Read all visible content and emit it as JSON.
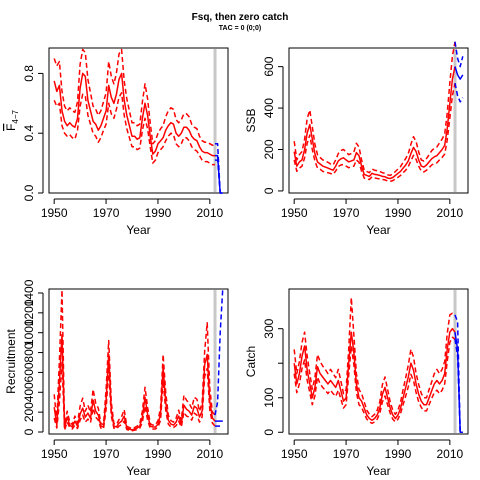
{
  "figure": {
    "title": "Fsq, then zero catch",
    "subtitle": "TAC = 0 (0;0)"
  },
  "colors": {
    "hist": "#ff0000",
    "proj": "#0000ff",
    "marker": "#c8c8c8",
    "axis": "#000000"
  },
  "chart_data": [
    {
      "id": "fbar",
      "type": "line",
      "xlabel": "Year",
      "ylabel": "F̅ 4−7",
      "ylabel_main": "F",
      "ylabel_sub": "4−7",
      "xlim": [
        1948,
        2017
      ],
      "ylim": [
        0,
        0.97
      ],
      "xticks": [
        1950,
        1970,
        1990,
        2010
      ],
      "yticks": [
        0.0,
        0.4,
        0.8
      ],
      "ytick_labels": [
        "0.0",
        "0.4",
        "0.8"
      ],
      "marker_year": 2012,
      "hist_years": [
        1950,
        1951,
        1952,
        1953,
        1954,
        1955,
        1956,
        1957,
        1958,
        1959,
        1960,
        1961,
        1962,
        1963,
        1964,
        1965,
        1966,
        1967,
        1968,
        1969,
        1970,
        1971,
        1972,
        1973,
        1974,
        1975,
        1976,
        1977,
        1978,
        1979,
        1980,
        1981,
        1982,
        1983,
        1984,
        1985,
        1986,
        1987,
        1988,
        1989,
        1990,
        1991,
        1992,
        1993,
        1994,
        1995,
        1996,
        1997,
        1998,
        1999,
        2000,
        2001,
        2002,
        2003,
        2004,
        2005,
        2006,
        2007,
        2008,
        2009,
        2010,
        2011,
        2012
      ],
      "median": [
        0.75,
        0.68,
        0.72,
        0.55,
        0.48,
        0.45,
        0.47,
        0.45,
        0.44,
        0.5,
        0.7,
        0.8,
        0.78,
        0.62,
        0.55,
        0.48,
        0.46,
        0.42,
        0.45,
        0.5,
        0.55,
        0.72,
        0.64,
        0.6,
        0.66,
        0.76,
        0.8,
        0.62,
        0.52,
        0.45,
        0.38,
        0.38,
        0.36,
        0.37,
        0.5,
        0.6,
        0.52,
        0.38,
        0.26,
        0.28,
        0.33,
        0.35,
        0.37,
        0.42,
        0.45,
        0.47,
        0.46,
        0.4,
        0.38,
        0.4,
        0.44,
        0.44,
        0.42,
        0.38,
        0.36,
        0.35,
        0.31,
        0.28,
        0.27,
        0.27,
        0.26,
        0.25,
        0.25
      ],
      "lower": [
        0.62,
        0.58,
        0.6,
        0.45,
        0.4,
        0.38,
        0.39,
        0.37,
        0.36,
        0.42,
        0.58,
        0.66,
        0.65,
        0.52,
        0.46,
        0.4,
        0.38,
        0.34,
        0.37,
        0.42,
        0.46,
        0.6,
        0.53,
        0.5,
        0.56,
        0.64,
        0.67,
        0.52,
        0.43,
        0.37,
        0.31,
        0.31,
        0.29,
        0.3,
        0.42,
        0.5,
        0.43,
        0.31,
        0.2,
        0.22,
        0.27,
        0.29,
        0.31,
        0.35,
        0.38,
        0.4,
        0.39,
        0.33,
        0.31,
        0.33,
        0.37,
        0.37,
        0.35,
        0.31,
        0.29,
        0.28,
        0.25,
        0.22,
        0.21,
        0.21,
        0.2,
        0.19,
        0.19
      ],
      "upper": [
        0.9,
        0.85,
        0.88,
        0.68,
        0.58,
        0.55,
        0.57,
        0.55,
        0.54,
        0.61,
        0.86,
        0.96,
        0.94,
        0.76,
        0.67,
        0.58,
        0.56,
        0.52,
        0.55,
        0.61,
        0.67,
        0.88,
        0.78,
        0.73,
        0.8,
        0.93,
        0.96,
        0.75,
        0.63,
        0.55,
        0.47,
        0.47,
        0.45,
        0.46,
        0.61,
        0.73,
        0.63,
        0.47,
        0.33,
        0.35,
        0.4,
        0.43,
        0.45,
        0.51,
        0.55,
        0.57,
        0.56,
        0.49,
        0.47,
        0.49,
        0.53,
        0.53,
        0.51,
        0.46,
        0.44,
        0.43,
        0.38,
        0.35,
        0.34,
        0.34,
        0.33,
        0.32,
        0.32
      ],
      "proj_years": [
        2012,
        2013,
        2014,
        2015
      ],
      "proj_median": [
        0.25,
        0.25,
        0.0,
        0.0
      ],
      "proj_lower": [
        0.22,
        0.22,
        0.0,
        0.0
      ],
      "proj_upper": [
        0.33,
        0.33,
        0.0,
        0.0
      ]
    },
    {
      "id": "ssb",
      "type": "line",
      "xlabel": "Year",
      "ylabel": "SSB",
      "xlim": [
        1948,
        2017
      ],
      "ylim": [
        -10,
        690
      ],
      "xticks": [
        1950,
        1970,
        1990,
        2010
      ],
      "yticks": [
        0,
        200,
        400,
        600
      ],
      "ytick_labels": [
        "0",
        "200",
        "400",
        "600"
      ],
      "marker_year": 2012,
      "hist_years": [
        1950,
        1951,
        1952,
        1953,
        1954,
        1955,
        1956,
        1957,
        1958,
        1959,
        1960,
        1961,
        1962,
        1963,
        1964,
        1965,
        1966,
        1967,
        1968,
        1969,
        1970,
        1971,
        1972,
        1973,
        1974,
        1975,
        1976,
        1977,
        1978,
        1979,
        1980,
        1981,
        1982,
        1983,
        1984,
        1985,
        1986,
        1987,
        1988,
        1989,
        1990,
        1991,
        1992,
        1993,
        1994,
        1995,
        1996,
        1997,
        1998,
        1999,
        2000,
        2001,
        2002,
        2003,
        2004,
        2005,
        2006,
        2007,
        2008,
        2009,
        2010,
        2011,
        2012
      ],
      "median": [
        190,
        120,
        140,
        150,
        200,
        280,
        320,
        250,
        180,
        140,
        130,
        120,
        115,
        110,
        105,
        100,
        120,
        145,
        155,
        160,
        150,
        140,
        145,
        150,
        185,
        170,
        120,
        80,
        75,
        70,
        85,
        80,
        78,
        75,
        70,
        68,
        62,
        60,
        65,
        75,
        85,
        95,
        110,
        125,
        145,
        180,
        210,
        190,
        150,
        120,
        115,
        125,
        140,
        155,
        165,
        170,
        185,
        200,
        220,
        300,
        420,
        540,
        600
      ],
      "lower": [
        150,
        95,
        110,
        120,
        160,
        230,
        270,
        200,
        145,
        110,
        105,
        95,
        90,
        88,
        84,
        80,
        96,
        118,
        125,
        128,
        120,
        112,
        116,
        120,
        150,
        138,
        95,
        62,
        58,
        55,
        68,
        63,
        60,
        58,
        55,
        53,
        48,
        46,
        50,
        58,
        66,
        75,
        88,
        100,
        118,
        145,
        172,
        152,
        120,
        95,
        92,
        100,
        112,
        125,
        132,
        136,
        150,
        162,
        178,
        245,
        350,
        460,
        520
      ],
      "upper": [
        240,
        150,
        175,
        190,
        250,
        350,
        390,
        310,
        225,
        175,
        162,
        150,
        145,
        138,
        130,
        125,
        150,
        180,
        195,
        200,
        188,
        175,
        180,
        188,
        230,
        212,
        150,
        100,
        94,
        88,
        106,
        100,
        98,
        94,
        88,
        85,
        78,
        75,
        82,
        94,
        106,
        118,
        138,
        156,
        180,
        225,
        262,
        238,
        188,
        150,
        144,
        156,
        175,
        194,
        206,
        212,
        232,
        250,
        275,
        375,
        520,
        650,
        720
      ],
      "proj_years": [
        2012,
        2013,
        2014,
        2015
      ],
      "proj_median": [
        600,
        560,
        540,
        560
      ],
      "proj_lower": [
        520,
        460,
        430,
        450
      ],
      "proj_upper": [
        720,
        640,
        600,
        650
      ]
    },
    {
      "id": "rec",
      "type": "line",
      "xlabel": "Year",
      "ylabel": "Recruitment",
      "xlim": [
        1948,
        2017
      ],
      "ylim": [
        -20,
        1440
      ],
      "xticks": [
        1950,
        1970,
        1990,
        2010
      ],
      "yticks": [
        0,
        400,
        800,
        1200
      ],
      "ytick_labels": [
        "0",
        "400",
        "800",
        "1200"
      ],
      "ytick_minor": [
        200,
        600,
        1000,
        1400
      ],
      "ytick_minor_labels": [
        "200",
        "600",
        "1000",
        "1400"
      ],
      "marker_year": 2012,
      "hist_years": [
        1950,
        1951,
        1952,
        1953,
        1954,
        1955,
        1956,
        1957,
        1958,
        1959,
        1960,
        1961,
        1962,
        1963,
        1964,
        1965,
        1966,
        1967,
        1968,
        1969,
        1970,
        1971,
        1972,
        1973,
        1974,
        1975,
        1976,
        1977,
        1978,
        1979,
        1980,
        1981,
        1982,
        1983,
        1984,
        1985,
        1986,
        1987,
        1988,
        1989,
        1990,
        1991,
        1992,
        1993,
        1994,
        1995,
        1996,
        1997,
        1998,
        1999,
        2000,
        2001,
        2002,
        2003,
        2004,
        2005,
        2006,
        2007,
        2008,
        2009,
        2010,
        2011,
        2012
      ],
      "median": [
        250,
        70,
        500,
        980,
        40,
        150,
        70,
        50,
        110,
        60,
        180,
        240,
        150,
        190,
        140,
        320,
        210,
        170,
        60,
        50,
        320,
        780,
        220,
        60,
        50,
        90,
        110,
        160,
        40,
        30,
        20,
        30,
        40,
        60,
        150,
        350,
        180,
        60,
        50,
        50,
        80,
        180,
        650,
        300,
        120,
        80,
        70,
        100,
        160,
        80,
        270,
        230,
        210,
        170,
        260,
        240,
        150,
        210,
        680,
        780,
        310,
        140,
        110
      ],
      "lower": [
        140,
        40,
        300,
        700,
        20,
        100,
        45,
        30,
        70,
        35,
        120,
        170,
        100,
        130,
        95,
        240,
        150,
        120,
        38,
        30,
        230,
        620,
        160,
        38,
        30,
        60,
        75,
        110,
        25,
        18,
        12,
        18,
        25,
        38,
        100,
        260,
        120,
        38,
        30,
        30,
        50,
        120,
        520,
        220,
        80,
        50,
        45,
        65,
        110,
        50,
        200,
        160,
        150,
        120,
        190,
        170,
        100,
        150,
        560,
        640,
        220,
        90,
        60
      ],
      "upper": [
        380,
        110,
        720,
        1430,
        70,
        210,
        100,
        75,
        160,
        90,
        260,
        340,
        210,
        270,
        200,
        430,
        290,
        240,
        85,
        75,
        430,
        920,
        300,
        85,
        75,
        125,
        155,
        225,
        60,
        45,
        32,
        45,
        60,
        85,
        210,
        450,
        250,
        85,
        70,
        70,
        115,
        250,
        780,
        400,
        170,
        115,
        100,
        140,
        220,
        115,
        370,
        320,
        290,
        240,
        350,
        330,
        210,
        290,
        820,
        1100,
        440,
        200,
        170
      ],
      "proj_years": [
        2012,
        2013,
        2014,
        2015
      ],
      "proj_median": [
        110,
        110,
        110,
        110
      ],
      "proj_lower": [
        60,
        60,
        60,
        60
      ],
      "proj_upper": [
        170,
        300,
        1000,
        1450
      ]
    },
    {
      "id": "catch",
      "type": "line",
      "xlabel": "Year",
      "ylabel": "Catch",
      "xlim": [
        1948,
        2017
      ],
      "ylim": [
        -5,
        415
      ],
      "xticks": [
        1950,
        1970,
        1990,
        2010
      ],
      "yticks": [
        0,
        100,
        300
      ],
      "ytick_labels": [
        "0",
        "100",
        "300"
      ],
      "ytick_minor": [
        200
      ],
      "marker_year": 2012,
      "hist_years": [
        1950,
        1951,
        1952,
        1953,
        1954,
        1955,
        1956,
        1957,
        1958,
        1959,
        1960,
        1961,
        1962,
        1963,
        1964,
        1965,
        1966,
        1967,
        1968,
        1969,
        1970,
        1971,
        1972,
        1973,
        1974,
        1975,
        1976,
        1977,
        1978,
        1979,
        1980,
        1981,
        1982,
        1983,
        1984,
        1985,
        1986,
        1987,
        1988,
        1989,
        1990,
        1991,
        1992,
        1993,
        1994,
        1995,
        1996,
        1997,
        1998,
        1999,
        2000,
        2001,
        2002,
        2003,
        2004,
        2005,
        2006,
        2007,
        2008,
        2009,
        2010,
        2011,
        2012
      ],
      "median": [
        200,
        140,
        170,
        220,
        250,
        180,
        140,
        100,
        130,
        190,
        170,
        160,
        150,
        140,
        150,
        140,
        130,
        150,
        120,
        90,
        100,
        200,
        290,
        230,
        140,
        100,
        90,
        70,
        50,
        40,
        35,
        40,
        50,
        70,
        110,
        130,
        100,
        70,
        50,
        40,
        50,
        70,
        100,
        130,
        160,
        200,
        180,
        140,
        110,
        90,
        80,
        80,
        100,
        120,
        140,
        150,
        140,
        150,
        170,
        240,
        290,
        300,
        290
      ],
      "lower": [
        170,
        115,
        140,
        185,
        210,
        150,
        115,
        80,
        105,
        160,
        140,
        130,
        122,
        112,
        122,
        112,
        104,
        122,
        96,
        70,
        80,
        165,
        250,
        195,
        115,
        80,
        72,
        55,
        38,
        30,
        26,
        30,
        38,
        55,
        88,
        105,
        80,
        55,
        38,
        30,
        38,
        55,
        80,
        105,
        132,
        168,
        150,
        115,
        88,
        72,
        62,
        62,
        80,
        98,
        115,
        122,
        112,
        122,
        140,
        205,
        260,
        275,
        270
      ],
      "upper": [
        240,
        170,
        205,
        260,
        290,
        220,
        170,
        125,
        158,
        225,
        205,
        192,
        182,
        170,
        182,
        170,
        158,
        182,
        148,
        112,
        124,
        240,
        390,
        280,
        170,
        124,
        112,
        88,
        64,
        52,
        45,
        52,
        64,
        88,
        138,
        160,
        124,
        88,
        64,
        52,
        64,
        88,
        124,
        158,
        195,
        240,
        218,
        170,
        138,
        112,
        100,
        100,
        124,
        146,
        170,
        182,
        170,
        182,
        205,
        285,
        340,
        345,
        340
      ],
      "proj_years": [
        2012,
        2013,
        2014,
        2015
      ],
      "proj_median": [
        290,
        240,
        0,
        0
      ],
      "proj_lower": [
        270,
        220,
        0,
        0
      ],
      "proj_upper": [
        340,
        320,
        0,
        0
      ]
    }
  ]
}
